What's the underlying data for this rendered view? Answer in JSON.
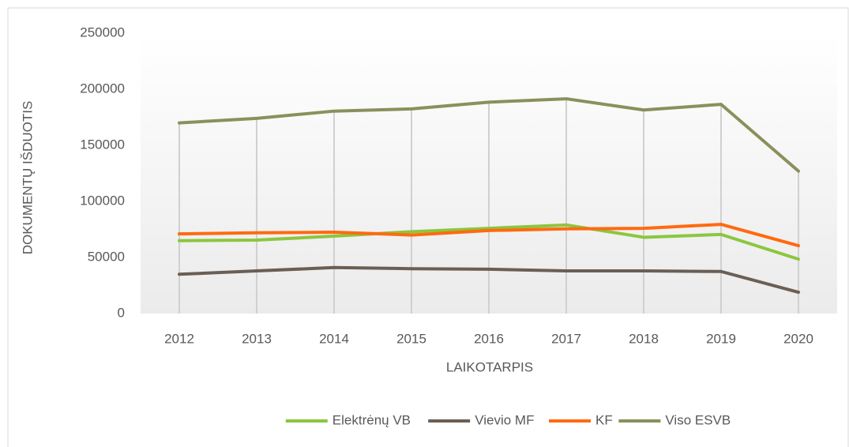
{
  "chart_data": {
    "type": "line",
    "x_label": "LAIKOTARPIS",
    "y_label": "DOKUMENTŲ IŠDUOTIS",
    "categories": [
      "2012",
      "2013",
      "2014",
      "2015",
      "2016",
      "2017",
      "2018",
      "2019",
      "2020"
    ],
    "series": [
      {
        "name": "Elektrėnų VB",
        "color": "#8cc63f",
        "values": [
          65000,
          65500,
          69000,
          73000,
          76000,
          79000,
          68000,
          70500,
          48500
        ]
      },
      {
        "name": "Vievio MF",
        "color": "#6b5e54",
        "values": [
          35000,
          38000,
          41000,
          40000,
          39500,
          38000,
          38000,
          37500,
          19000
        ]
      },
      {
        "name": "KF",
        "color": "#ff6a10",
        "values": [
          71000,
          72000,
          72500,
          70000,
          74000,
          75500,
          76000,
          79500,
          60500
        ]
      },
      {
        "name": "Viso ESVB",
        "color": "#8b8f5c",
        "values": [
          170000,
          174000,
          180500,
          182500,
          188500,
          191500,
          181500,
          186500,
          127000
        ]
      }
    ],
    "ylim": [
      0,
      250000
    ],
    "yticks": [
      0,
      50000,
      100000,
      150000,
      200000,
      250000
    ],
    "legend": "bottom",
    "drop_lines": true
  }
}
